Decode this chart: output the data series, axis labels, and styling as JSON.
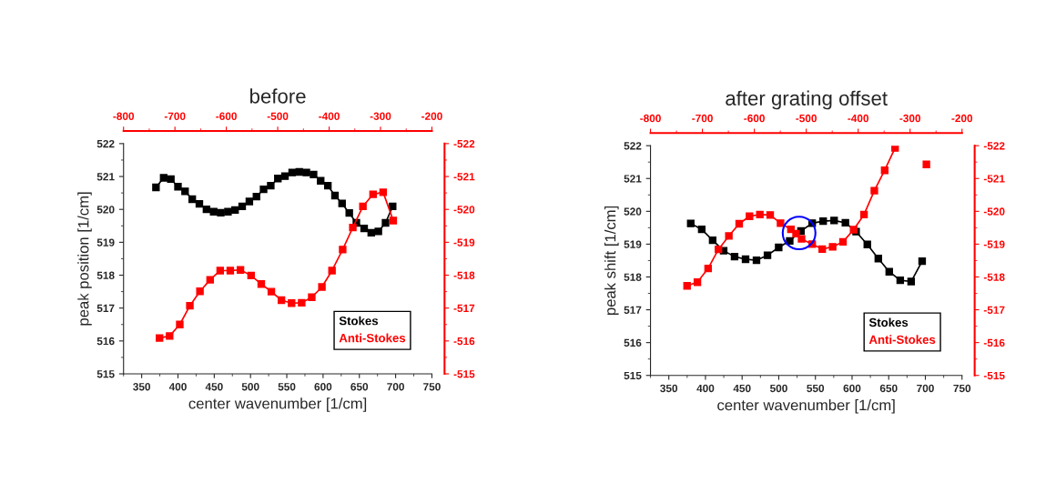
{
  "chart_data": [
    {
      "type": "line",
      "title": "before",
      "xlabel": "center wavenumber [1/cm]",
      "ylabel": "peak position [1/cm]",
      "xlim": [
        325,
        750
      ],
      "xticks": [
        350,
        400,
        450,
        500,
        550,
        600,
        650,
        700,
        750
      ],
      "ylim": [
        515,
        522
      ],
      "yticks": [
        515,
        516,
        517,
        518,
        519,
        520,
        521,
        522
      ],
      "x2lim": [
        -800,
        -200
      ],
      "x2ticks": [
        -800,
        -700,
        -600,
        -500,
        -400,
        -300,
        -200
      ],
      "y2lim": [
        -515,
        -522
      ],
      "y2ticks": [
        -515,
        -516,
        -517,
        -518,
        -519,
        -520,
        -521,
        -522
      ],
      "marker": "square",
      "line_style": "solid",
      "legend": "bottom right",
      "series": [
        {
          "name": "Stokes",
          "color": "#000000",
          "x": [
            369.7,
            380.3,
            390.2,
            400,
            409.8,
            419.7,
            429.5,
            439.3,
            449.2,
            459,
            468.9,
            478.7,
            488.5,
            498.4,
            508.2,
            518,
            527.9,
            537.7,
            547.5,
            557.4,
            567.2,
            577,
            586.9,
            596.7,
            606.6,
            616.4,
            626.2,
            636.1,
            645.9,
            656.6,
            666.4,
            676.2,
            686.1,
            695.9
          ],
          "values": [
            520.67,
            520.96,
            520.92,
            520.69,
            520.55,
            520.31,
            520.17,
            520.0,
            519.93,
            519.9,
            519.93,
            519.98,
            520.09,
            520.24,
            520.39,
            520.61,
            520.72,
            520.94,
            521.01,
            521.12,
            521.14,
            521.12,
            521.06,
            520.87,
            520.72,
            520.42,
            520.18,
            519.89,
            519.59,
            519.42,
            519.29,
            519.33,
            519.59,
            520.09
          ]
        },
        {
          "name": "Anti-Stokes",
          "color": "#ff0000",
          "axis": "y2",
          "x": [
            374.6,
            388.5,
            402.5,
            416.4,
            430.3,
            444.3,
            458.2,
            472.1,
            486.1,
            500.8,
            514.8,
            528.7,
            542.6,
            556.6,
            570.5,
            584.4,
            598.4,
            612.3,
            627,
            641,
            654.9,
            668.9,
            682.8,
            696.7
          ],
          "values": [
            -516.09,
            -516.15,
            -516.5,
            -517.07,
            -517.51,
            -517.86,
            -518.14,
            -518.14,
            -518.16,
            -517.99,
            -517.73,
            -517.5,
            -517.24,
            -517.15,
            -517.16,
            -517.33,
            -517.64,
            -518.14,
            -518.78,
            -519.45,
            -520.09,
            -520.46,
            -520.52,
            -519.66
          ]
        }
      ]
    },
    {
      "type": "line",
      "title": "after grating offset",
      "xlabel": "center wavenumber [1/cm]",
      "ylabel": "peak shift [1/cm]",
      "xlim": [
        325,
        750
      ],
      "xticks": [
        350,
        400,
        450,
        500,
        550,
        600,
        650,
        700,
        750
      ],
      "ylim": [
        515,
        522
      ],
      "yticks": [
        515,
        516,
        517,
        518,
        519,
        520,
        521,
        522
      ],
      "x2lim": [
        -800,
        -200
      ],
      "x2ticks": [
        -800,
        -700,
        -600,
        -500,
        -400,
        -300,
        -200
      ],
      "y2lim": [
        -515,
        -522
      ],
      "y2ticks": [
        -515,
        -516,
        -517,
        -518,
        -519,
        -520,
        -521,
        -522
      ],
      "marker": "square",
      "line_style": "solid",
      "legend": "bottom right",
      "series": [
        {
          "name": "Stokes",
          "color": "#000000",
          "x": [
            379.9,
            394.9,
            409.8,
            424.8,
            439.7,
            454.7,
            469.6,
            484.6,
            499.9,
            514.9,
            530.3,
            545.6,
            560.6,
            575.5,
            590.9,
            605.5,
            620.8,
            635.8,
            650.7,
            665.7,
            680.6,
            695.6
          ],
          "values": [
            519.63,
            519.45,
            519.12,
            518.8,
            518.62,
            518.54,
            518.51,
            518.66,
            518.9,
            519.1,
            519.4,
            519.64,
            519.7,
            519.72,
            519.65,
            519.38,
            518.99,
            518.56,
            518.16,
            517.9,
            517.86,
            518.48
          ]
        },
        {
          "name": "Anti-Stokes",
          "color": "#ff0000",
          "axis": "y2",
          "x": [
            374.9,
            389,
            403.6,
            417.7,
            431.9,
            446,
            460.1,
            474.2,
            488.3,
            502.4,
            516.6,
            523.6,
            531.1,
            545.6,
            559.3,
            573.5,
            587.6,
            602.1,
            616.3,
            630.4,
            644.5,
            658.7,
            680,
            701.4
          ],
          "values": [
            -517.73,
            -517.84,
            -518.26,
            -518.84,
            -519.25,
            -519.62,
            -519.85,
            -519.9,
            -519.89,
            -519.64,
            -519.45,
            -519.32,
            -519.16,
            -519.0,
            -518.85,
            -518.92,
            -519.07,
            -519.44,
            -519.9,
            -520.63,
            -521.25,
            -521.93,
            null,
            -521.43
          ]
        }
      ]
    }
  ]
}
